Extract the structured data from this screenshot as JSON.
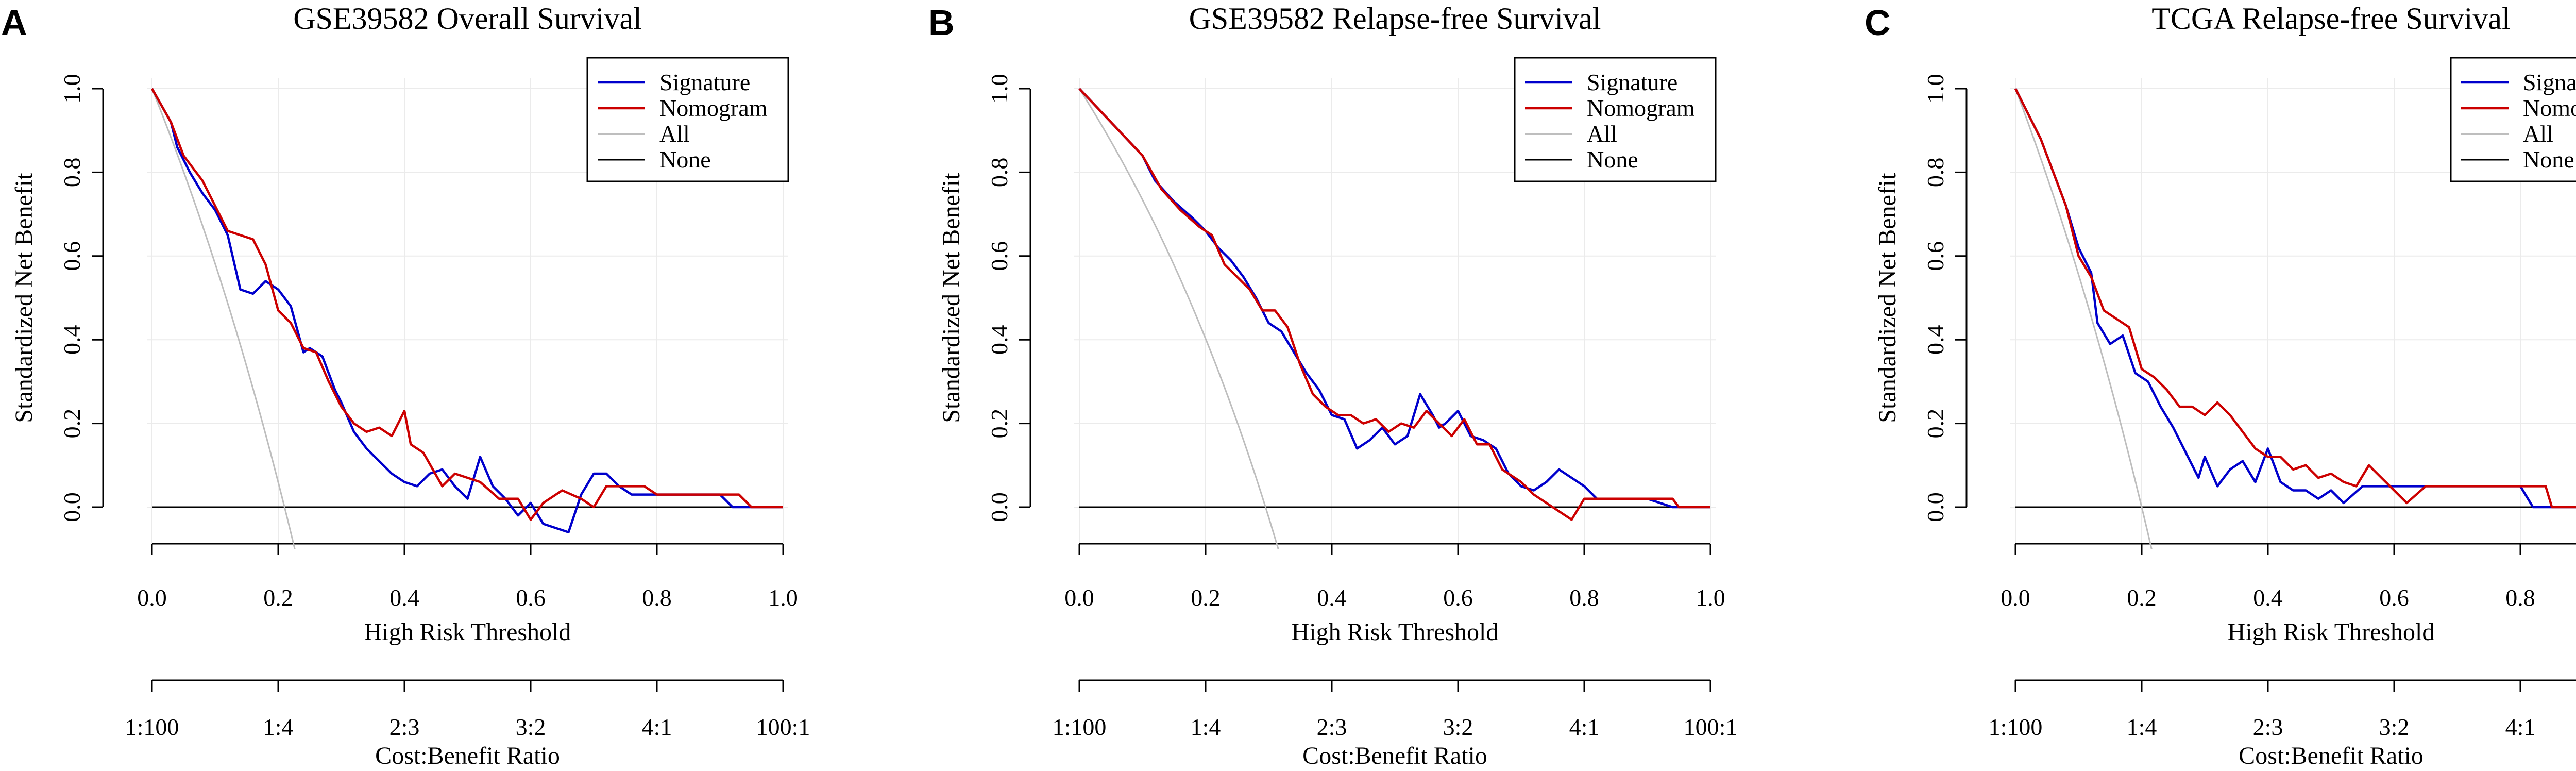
{
  "figure": {
    "x_axis_label": "High Risk Threshold",
    "y_axis_label": "Standardized Net Benefit",
    "cost_benefit_label": "Cost:Benefit Ratio",
    "x_tick_labels": [
      "0.0",
      "0.2",
      "0.4",
      "0.6",
      "0.8",
      "1.0"
    ],
    "y_tick_labels": [
      "0.0",
      "0.2",
      "0.4",
      "0.6",
      "0.8",
      "1.0"
    ],
    "cost_benefit_ticks": [
      "1:100",
      "1:4",
      "2:3",
      "3:2",
      "4:1",
      "100:1"
    ]
  },
  "legend": {
    "entries": [
      {
        "label": "Signature",
        "color": "#0000CC"
      },
      {
        "label": "Nomogram",
        "color": "#CC0000"
      },
      {
        "label": "All",
        "color": "#BEBEBE"
      },
      {
        "label": "None",
        "color": "#000000"
      }
    ]
  },
  "chart_data": [
    {
      "panel": "A",
      "type": "line",
      "title": "GSE39582 Overall Survival",
      "xlabel": "High Risk Threshold",
      "ylabel": "Standardized Net Benefit",
      "xlim": [
        0,
        1
      ],
      "ylim": [
        -0.1,
        1.0
      ],
      "all_prevalence": 0.21,
      "series": [
        {
          "name": "Signature",
          "color": "#0000CC",
          "x": [
            0,
            0.03,
            0.04,
            0.06,
            0.08,
            0.1,
            0.12,
            0.14,
            0.16,
            0.18,
            0.2,
            0.22,
            0.24,
            0.25,
            0.27,
            0.29,
            0.3,
            0.32,
            0.34,
            0.36,
            0.38,
            0.4,
            0.42,
            0.44,
            0.46,
            0.48,
            0.5,
            0.52,
            0.54,
            0.56,
            0.58,
            0.6,
            0.62,
            0.64,
            0.66,
            0.68,
            0.7,
            0.72,
            0.74,
            0.76,
            0.8,
            0.85,
            0.9,
            0.92,
            0.94,
            1.0
          ],
          "y": [
            1.0,
            0.92,
            0.86,
            0.8,
            0.75,
            0.71,
            0.65,
            0.52,
            0.51,
            0.54,
            0.52,
            0.48,
            0.37,
            0.38,
            0.36,
            0.28,
            0.25,
            0.18,
            0.14,
            0.11,
            0.08,
            0.06,
            0.05,
            0.08,
            0.09,
            0.05,
            0.02,
            0.12,
            0.05,
            0.02,
            -0.02,
            0.01,
            -0.04,
            -0.05,
            -0.06,
            0.03,
            0.08,
            0.08,
            0.05,
            0.03,
            0.03,
            0.03,
            0.03,
            0.0,
            0.0,
            0.0
          ]
        },
        {
          "name": "Nomogram",
          "color": "#CC0000",
          "x": [
            0,
            0.03,
            0.05,
            0.08,
            0.1,
            0.12,
            0.14,
            0.16,
            0.18,
            0.2,
            0.22,
            0.24,
            0.26,
            0.28,
            0.3,
            0.32,
            0.34,
            0.36,
            0.38,
            0.4,
            0.41,
            0.43,
            0.46,
            0.48,
            0.5,
            0.52,
            0.55,
            0.58,
            0.6,
            0.62,
            0.65,
            0.68,
            0.7,
            0.72,
            0.75,
            0.78,
            0.8,
            0.85,
            0.9,
            0.93,
            0.95,
            1.0
          ],
          "y": [
            1.0,
            0.92,
            0.84,
            0.78,
            0.72,
            0.66,
            0.65,
            0.64,
            0.58,
            0.47,
            0.44,
            0.38,
            0.37,
            0.3,
            0.24,
            0.2,
            0.18,
            0.19,
            0.17,
            0.23,
            0.15,
            0.13,
            0.05,
            0.08,
            0.07,
            0.06,
            0.02,
            0.02,
            -0.03,
            0.01,
            0.04,
            0.02,
            0.0,
            0.05,
            0.05,
            0.05,
            0.03,
            0.03,
            0.03,
            0.03,
            0.0,
            0.0
          ]
        }
      ]
    },
    {
      "panel": "B",
      "type": "line",
      "title": "GSE39582 Relapse-free Survival",
      "xlabel": "High Risk Threshold",
      "ylabel": "Standardized Net Benefit",
      "xlim": [
        0,
        1
      ],
      "ylim": [
        -0.1,
        1.0
      ],
      "all_prevalence": 0.295,
      "series": [
        {
          "name": "Signature",
          "color": "#0000CC",
          "x": [
            0,
            0.05,
            0.1,
            0.12,
            0.15,
            0.18,
            0.2,
            0.22,
            0.24,
            0.26,
            0.28,
            0.3,
            0.32,
            0.34,
            0.36,
            0.38,
            0.4,
            0.42,
            0.44,
            0.46,
            0.48,
            0.5,
            0.52,
            0.54,
            0.56,
            0.57,
            0.58,
            0.6,
            0.62,
            0.64,
            0.66,
            0.68,
            0.7,
            0.72,
            0.74,
            0.76,
            0.78,
            0.8,
            0.82,
            0.84,
            0.86,
            0.9,
            0.94,
            1.0
          ],
          "y": [
            1.0,
            0.92,
            0.84,
            0.78,
            0.73,
            0.69,
            0.66,
            0.62,
            0.59,
            0.55,
            0.5,
            0.44,
            0.42,
            0.37,
            0.32,
            0.28,
            0.22,
            0.21,
            0.14,
            0.16,
            0.19,
            0.15,
            0.17,
            0.27,
            0.22,
            0.19,
            0.2,
            0.23,
            0.17,
            0.16,
            0.14,
            0.08,
            0.05,
            0.04,
            0.06,
            0.09,
            0.07,
            0.05,
            0.02,
            0.02,
            0.02,
            0.02,
            0.0,
            0.0
          ]
        },
        {
          "name": "Nomogram",
          "color": "#CC0000",
          "x": [
            0,
            0.05,
            0.1,
            0.13,
            0.16,
            0.19,
            0.21,
            0.23,
            0.25,
            0.27,
            0.29,
            0.31,
            0.33,
            0.35,
            0.37,
            0.39,
            0.41,
            0.43,
            0.45,
            0.47,
            0.49,
            0.51,
            0.53,
            0.55,
            0.57,
            0.59,
            0.61,
            0.63,
            0.65,
            0.67,
            0.7,
            0.72,
            0.74,
            0.76,
            0.78,
            0.8,
            0.82,
            0.86,
            0.9,
            0.94,
            0.95,
            1.0
          ],
          "y": [
            1.0,
            0.92,
            0.84,
            0.76,
            0.71,
            0.67,
            0.65,
            0.58,
            0.55,
            0.52,
            0.47,
            0.47,
            0.43,
            0.34,
            0.27,
            0.24,
            0.22,
            0.22,
            0.2,
            0.21,
            0.18,
            0.2,
            0.19,
            0.23,
            0.2,
            0.17,
            0.21,
            0.15,
            0.15,
            0.09,
            0.06,
            0.03,
            0.01,
            -0.01,
            -0.03,
            0.02,
            0.02,
            0.02,
            0.02,
            0.02,
            0.0,
            0.0
          ]
        }
      ]
    },
    {
      "panel": "C",
      "type": "line",
      "title": "TCGA Relapse-free Survival",
      "xlabel": "High Risk Threshold",
      "ylabel": "Standardized Net Benefit",
      "xlim": [
        0,
        1
      ],
      "ylim": [
        -0.1,
        1.0
      ],
      "all_prevalence": 0.2,
      "series": [
        {
          "name": "Signature",
          "color": "#0000CC",
          "x": [
            0,
            0.04,
            0.08,
            0.1,
            0.12,
            0.13,
            0.15,
            0.17,
            0.19,
            0.21,
            0.23,
            0.25,
            0.27,
            0.29,
            0.3,
            0.32,
            0.34,
            0.36,
            0.38,
            0.4,
            0.42,
            0.44,
            0.46,
            0.48,
            0.5,
            0.52,
            0.55,
            0.6,
            0.65,
            0.7,
            0.75,
            0.8,
            0.82,
            0.85,
            1.0
          ],
          "y": [
            1.0,
            0.88,
            0.72,
            0.62,
            0.56,
            0.44,
            0.39,
            0.41,
            0.32,
            0.3,
            0.24,
            0.19,
            0.13,
            0.07,
            0.12,
            0.05,
            0.09,
            0.11,
            0.06,
            0.14,
            0.06,
            0.04,
            0.04,
            0.02,
            0.04,
            0.01,
            0.05,
            0.05,
            0.05,
            0.05,
            0.05,
            0.05,
            0.0,
            0.0,
            0.0
          ]
        },
        {
          "name": "Nomogram",
          "color": "#CC0000",
          "x": [
            0,
            0.04,
            0.08,
            0.1,
            0.12,
            0.14,
            0.16,
            0.18,
            0.2,
            0.22,
            0.24,
            0.26,
            0.28,
            0.3,
            0.32,
            0.34,
            0.36,
            0.38,
            0.4,
            0.42,
            0.44,
            0.46,
            0.48,
            0.5,
            0.52,
            0.54,
            0.56,
            0.58,
            0.6,
            0.62,
            0.65,
            0.7,
            0.75,
            0.8,
            0.82,
            0.84,
            0.85,
            1.0
          ],
          "y": [
            1.0,
            0.88,
            0.72,
            0.6,
            0.55,
            0.47,
            0.45,
            0.43,
            0.33,
            0.31,
            0.28,
            0.24,
            0.24,
            0.22,
            0.25,
            0.22,
            0.18,
            0.14,
            0.12,
            0.12,
            0.09,
            0.1,
            0.07,
            0.08,
            0.06,
            0.05,
            0.1,
            0.07,
            0.04,
            0.01,
            0.05,
            0.05,
            0.05,
            0.05,
            0.05,
            0.05,
            0.0,
            0.0
          ]
        }
      ]
    }
  ]
}
